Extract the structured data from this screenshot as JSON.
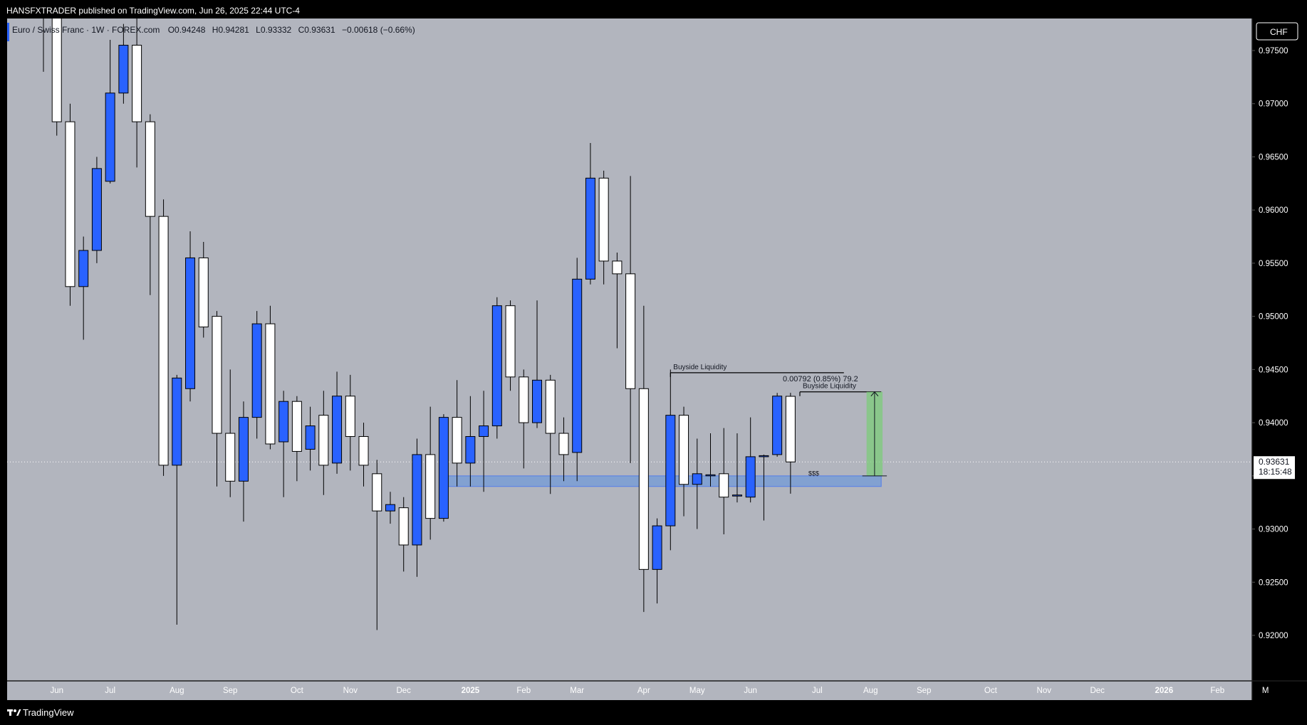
{
  "header": {
    "published_text": "HANSFXTRADER published on TradingView.com, Jun 26, 2025 22:44 UTC-4"
  },
  "legend": {
    "symbol_text": "Euro / Swiss Franc · 1W · FOREX.com",
    "ohlc": {
      "open": "O0.94248",
      "high": "H0.94281",
      "low": "L0.93332",
      "close": "C0.93631",
      "change": "−0.00618 (−0.66%)"
    }
  },
  "currency_badge": "CHF",
  "price_label": {
    "price": "0.93631",
    "countdown": "18:15:48"
  },
  "footer": {
    "brand": "TradingView"
  },
  "colors": {
    "background": "#000000",
    "plot_bg": "#b2b5be",
    "bull_candle": "#2962ff",
    "bear_candle": "#ffffff",
    "zone_fill": "#5b8fe0",
    "measure_fill": "#7ccc7a"
  },
  "chart_data": {
    "type": "candlestick",
    "symbol": "EURCHF",
    "timeframe": "1W",
    "ylim": [
      0.9155,
      0.9785
    ],
    "y_ticks": [
      0.975,
      0.97,
      0.965,
      0.96,
      0.955,
      0.95,
      0.945,
      0.94,
      0.935,
      0.93,
      0.925,
      0.92
    ],
    "y_tick_labels": [
      "0.97500",
      "0.97000",
      "0.96500",
      "0.96000",
      "0.95500",
      "0.95000",
      "0.94500",
      "0.94000",
      "0.93500",
      "0.93000",
      "0.92500",
      "0.92000"
    ],
    "x_ticks": [
      {
        "label": "Jun",
        "idx": 1,
        "bold": false
      },
      {
        "label": "Jul",
        "idx": 5,
        "bold": false
      },
      {
        "label": "Aug",
        "idx": 10,
        "bold": false
      },
      {
        "label": "Sep",
        "idx": 14,
        "bold": false
      },
      {
        "label": "Oct",
        "idx": 19,
        "bold": false
      },
      {
        "label": "Nov",
        "idx": 23,
        "bold": false
      },
      {
        "label": "Dec",
        "idx": 27,
        "bold": false
      },
      {
        "label": "2025",
        "idx": 32,
        "bold": true
      },
      {
        "label": "Feb",
        "idx": 36,
        "bold": false
      },
      {
        "label": "Mar",
        "idx": 40,
        "bold": false
      },
      {
        "label": "Apr",
        "idx": 45,
        "bold": false
      },
      {
        "label": "May",
        "idx": 49,
        "bold": false
      },
      {
        "label": "Jun",
        "idx": 53,
        "bold": false
      },
      {
        "label": "Jul",
        "idx": 58,
        "bold": false
      },
      {
        "label": "Aug",
        "idx": 62,
        "bold": false
      },
      {
        "label": "Sep",
        "idx": 66,
        "bold": false
      },
      {
        "label": "Oct",
        "idx": 71,
        "bold": false
      },
      {
        "label": "Nov",
        "idx": 75,
        "bold": false
      },
      {
        "label": "Dec",
        "idx": 79,
        "bold": false
      },
      {
        "label": "2026",
        "idx": 84,
        "bold": true
      },
      {
        "label": "Feb",
        "idx": 88,
        "bold": false
      },
      {
        "label": "M",
        "idx": 91.6,
        "bold": false
      }
    ],
    "candles": [
      {
        "o": 0.982,
        "h": 0.984,
        "l": 0.973,
        "c": 0.98
      },
      {
        "o": 0.98,
        "h": 0.983,
        "l": 0.967,
        "c": 0.9683
      },
      {
        "o": 0.9683,
        "h": 0.97,
        "l": 0.951,
        "c": 0.9528
      },
      {
        "o": 0.9528,
        "h": 0.9575,
        "l": 0.9478,
        "c": 0.9562
      },
      {
        "o": 0.9562,
        "h": 0.965,
        "l": 0.955,
        "c": 0.9639
      },
      {
        "o": 0.9627,
        "h": 0.976,
        "l": 0.9625,
        "c": 0.971
      },
      {
        "o": 0.971,
        "h": 0.9775,
        "l": 0.97,
        "c": 0.9755
      },
      {
        "o": 0.9755,
        "h": 0.98,
        "l": 0.964,
        "c": 0.9683
      },
      {
        "o": 0.9683,
        "h": 0.969,
        "l": 0.952,
        "c": 0.9594
      },
      {
        "o": 0.9594,
        "h": 0.961,
        "l": 0.935,
        "c": 0.936
      },
      {
        "o": 0.936,
        "h": 0.9445,
        "l": 0.921,
        "c": 0.9442
      },
      {
        "o": 0.9432,
        "h": 0.958,
        "l": 0.942,
        "c": 0.9555
      },
      {
        "o": 0.9555,
        "h": 0.957,
        "l": 0.948,
        "c": 0.949
      },
      {
        "o": 0.95,
        "h": 0.9505,
        "l": 0.934,
        "c": 0.939
      },
      {
        "o": 0.939,
        "h": 0.945,
        "l": 0.933,
        "c": 0.9345
      },
      {
        "o": 0.9345,
        "h": 0.942,
        "l": 0.9307,
        "c": 0.9405
      },
      {
        "o": 0.9405,
        "h": 0.9505,
        "l": 0.9385,
        "c": 0.9493
      },
      {
        "o": 0.9493,
        "h": 0.951,
        "l": 0.9375,
        "c": 0.938
      },
      {
        "o": 0.9382,
        "h": 0.943,
        "l": 0.933,
        "c": 0.942
      },
      {
        "o": 0.942,
        "h": 0.9425,
        "l": 0.9345,
        "c": 0.9373
      },
      {
        "o": 0.9375,
        "h": 0.9415,
        "l": 0.9355,
        "c": 0.9397
      },
      {
        "o": 0.9407,
        "h": 0.943,
        "l": 0.9332,
        "c": 0.936
      },
      {
        "o": 0.9362,
        "h": 0.9448,
        "l": 0.9352,
        "c": 0.9425
      },
      {
        "o": 0.9425,
        "h": 0.9445,
        "l": 0.9355,
        "c": 0.9387
      },
      {
        "o": 0.9387,
        "h": 0.94,
        "l": 0.934,
        "c": 0.936
      },
      {
        "o": 0.9352,
        "h": 0.9365,
        "l": 0.9205,
        "c": 0.9317
      },
      {
        "o": 0.9317,
        "h": 0.9335,
        "l": 0.9305,
        "c": 0.9323
      },
      {
        "o": 0.932,
        "h": 0.933,
        "l": 0.926,
        "c": 0.9285
      },
      {
        "o": 0.9285,
        "h": 0.9385,
        "l": 0.9255,
        "c": 0.937
      },
      {
        "o": 0.937,
        "h": 0.9415,
        "l": 0.929,
        "c": 0.931
      },
      {
        "o": 0.931,
        "h": 0.9408,
        "l": 0.9307,
        "c": 0.9405
      },
      {
        "o": 0.9405,
        "h": 0.944,
        "l": 0.934,
        "c": 0.9362
      },
      {
        "o": 0.9362,
        "h": 0.9425,
        "l": 0.934,
        "c": 0.9387
      },
      {
        "o": 0.9387,
        "h": 0.943,
        "l": 0.9335,
        "c": 0.9397
      },
      {
        "o": 0.9397,
        "h": 0.9518,
        "l": 0.9385,
        "c": 0.951
      },
      {
        "o": 0.951,
        "h": 0.9515,
        "l": 0.943,
        "c": 0.9443
      },
      {
        "o": 0.9443,
        "h": 0.945,
        "l": 0.9357,
        "c": 0.94
      },
      {
        "o": 0.94,
        "h": 0.9515,
        "l": 0.9395,
        "c": 0.944
      },
      {
        "o": 0.944,
        "h": 0.9445,
        "l": 0.9333,
        "c": 0.939
      },
      {
        "o": 0.939,
        "h": 0.9405,
        "l": 0.9345,
        "c": 0.937
      },
      {
        "o": 0.9372,
        "h": 0.9555,
        "l": 0.9345,
        "c": 0.9535
      },
      {
        "o": 0.9535,
        "h": 0.9663,
        "l": 0.953,
        "c": 0.963
      },
      {
        "o": 0.963,
        "h": 0.9637,
        "l": 0.953,
        "c": 0.9552
      },
      {
        "o": 0.9552,
        "h": 0.956,
        "l": 0.947,
        "c": 0.954
      },
      {
        "o": 0.954,
        "h": 0.9632,
        "l": 0.9362,
        "c": 0.9432
      },
      {
        "o": 0.9432,
        "h": 0.951,
        "l": 0.9222,
        "c": 0.9262
      },
      {
        "o": 0.9262,
        "h": 0.931,
        "l": 0.923,
        "c": 0.9303
      },
      {
        "o": 0.9303,
        "h": 0.945,
        "l": 0.928,
        "c": 0.9407
      },
      {
        "o": 0.9407,
        "h": 0.9415,
        "l": 0.9312,
        "c": 0.9342
      },
      {
        "o": 0.9342,
        "h": 0.9385,
        "l": 0.93,
        "c": 0.9352
      },
      {
        "o": 0.935,
        "h": 0.939,
        "l": 0.934,
        "c": 0.9351
      },
      {
        "o": 0.9352,
        "h": 0.9395,
        "l": 0.9295,
        "c": 0.933
      },
      {
        "o": 0.9331,
        "h": 0.939,
        "l": 0.9325,
        "c": 0.9332
      },
      {
        "o": 0.933,
        "h": 0.9405,
        "l": 0.9325,
        "c": 0.9368
      },
      {
        "o": 0.9368,
        "h": 0.937,
        "l": 0.9308,
        "c": 0.9369
      },
      {
        "o": 0.937,
        "h": 0.9428,
        "l": 0.9368,
        "c": 0.9425
      },
      {
        "o": 0.94248,
        "h": 0.94281,
        "l": 0.93332,
        "c": 0.93631
      }
    ],
    "annotations": {
      "demand_zone": {
        "from_idx": 30,
        "to_idx": 62.8,
        "y_low": 0.934,
        "y_high": 0.935
      },
      "buyside_liquidity_1": {
        "label": "Buyside Liquidity",
        "from_idx": 47,
        "to_idx": 60,
        "y": 0.9447
      },
      "buyside_liquidity_2": {
        "label": "Buyside Liquidity",
        "from_idx": 56.7,
        "to_idx": 62.8,
        "y": 0.9429
      },
      "sss_label": {
        "text": "$$$",
        "idx": 57.5,
        "y": 0.9349
      },
      "measure": {
        "label": "0.00792 (0.85%) 79.2",
        "from_idx": 61.7,
        "to_idx": 62.9,
        "y_low": 0.935,
        "y_high": 0.9429
      },
      "current_price_line": 0.93631
    }
  }
}
